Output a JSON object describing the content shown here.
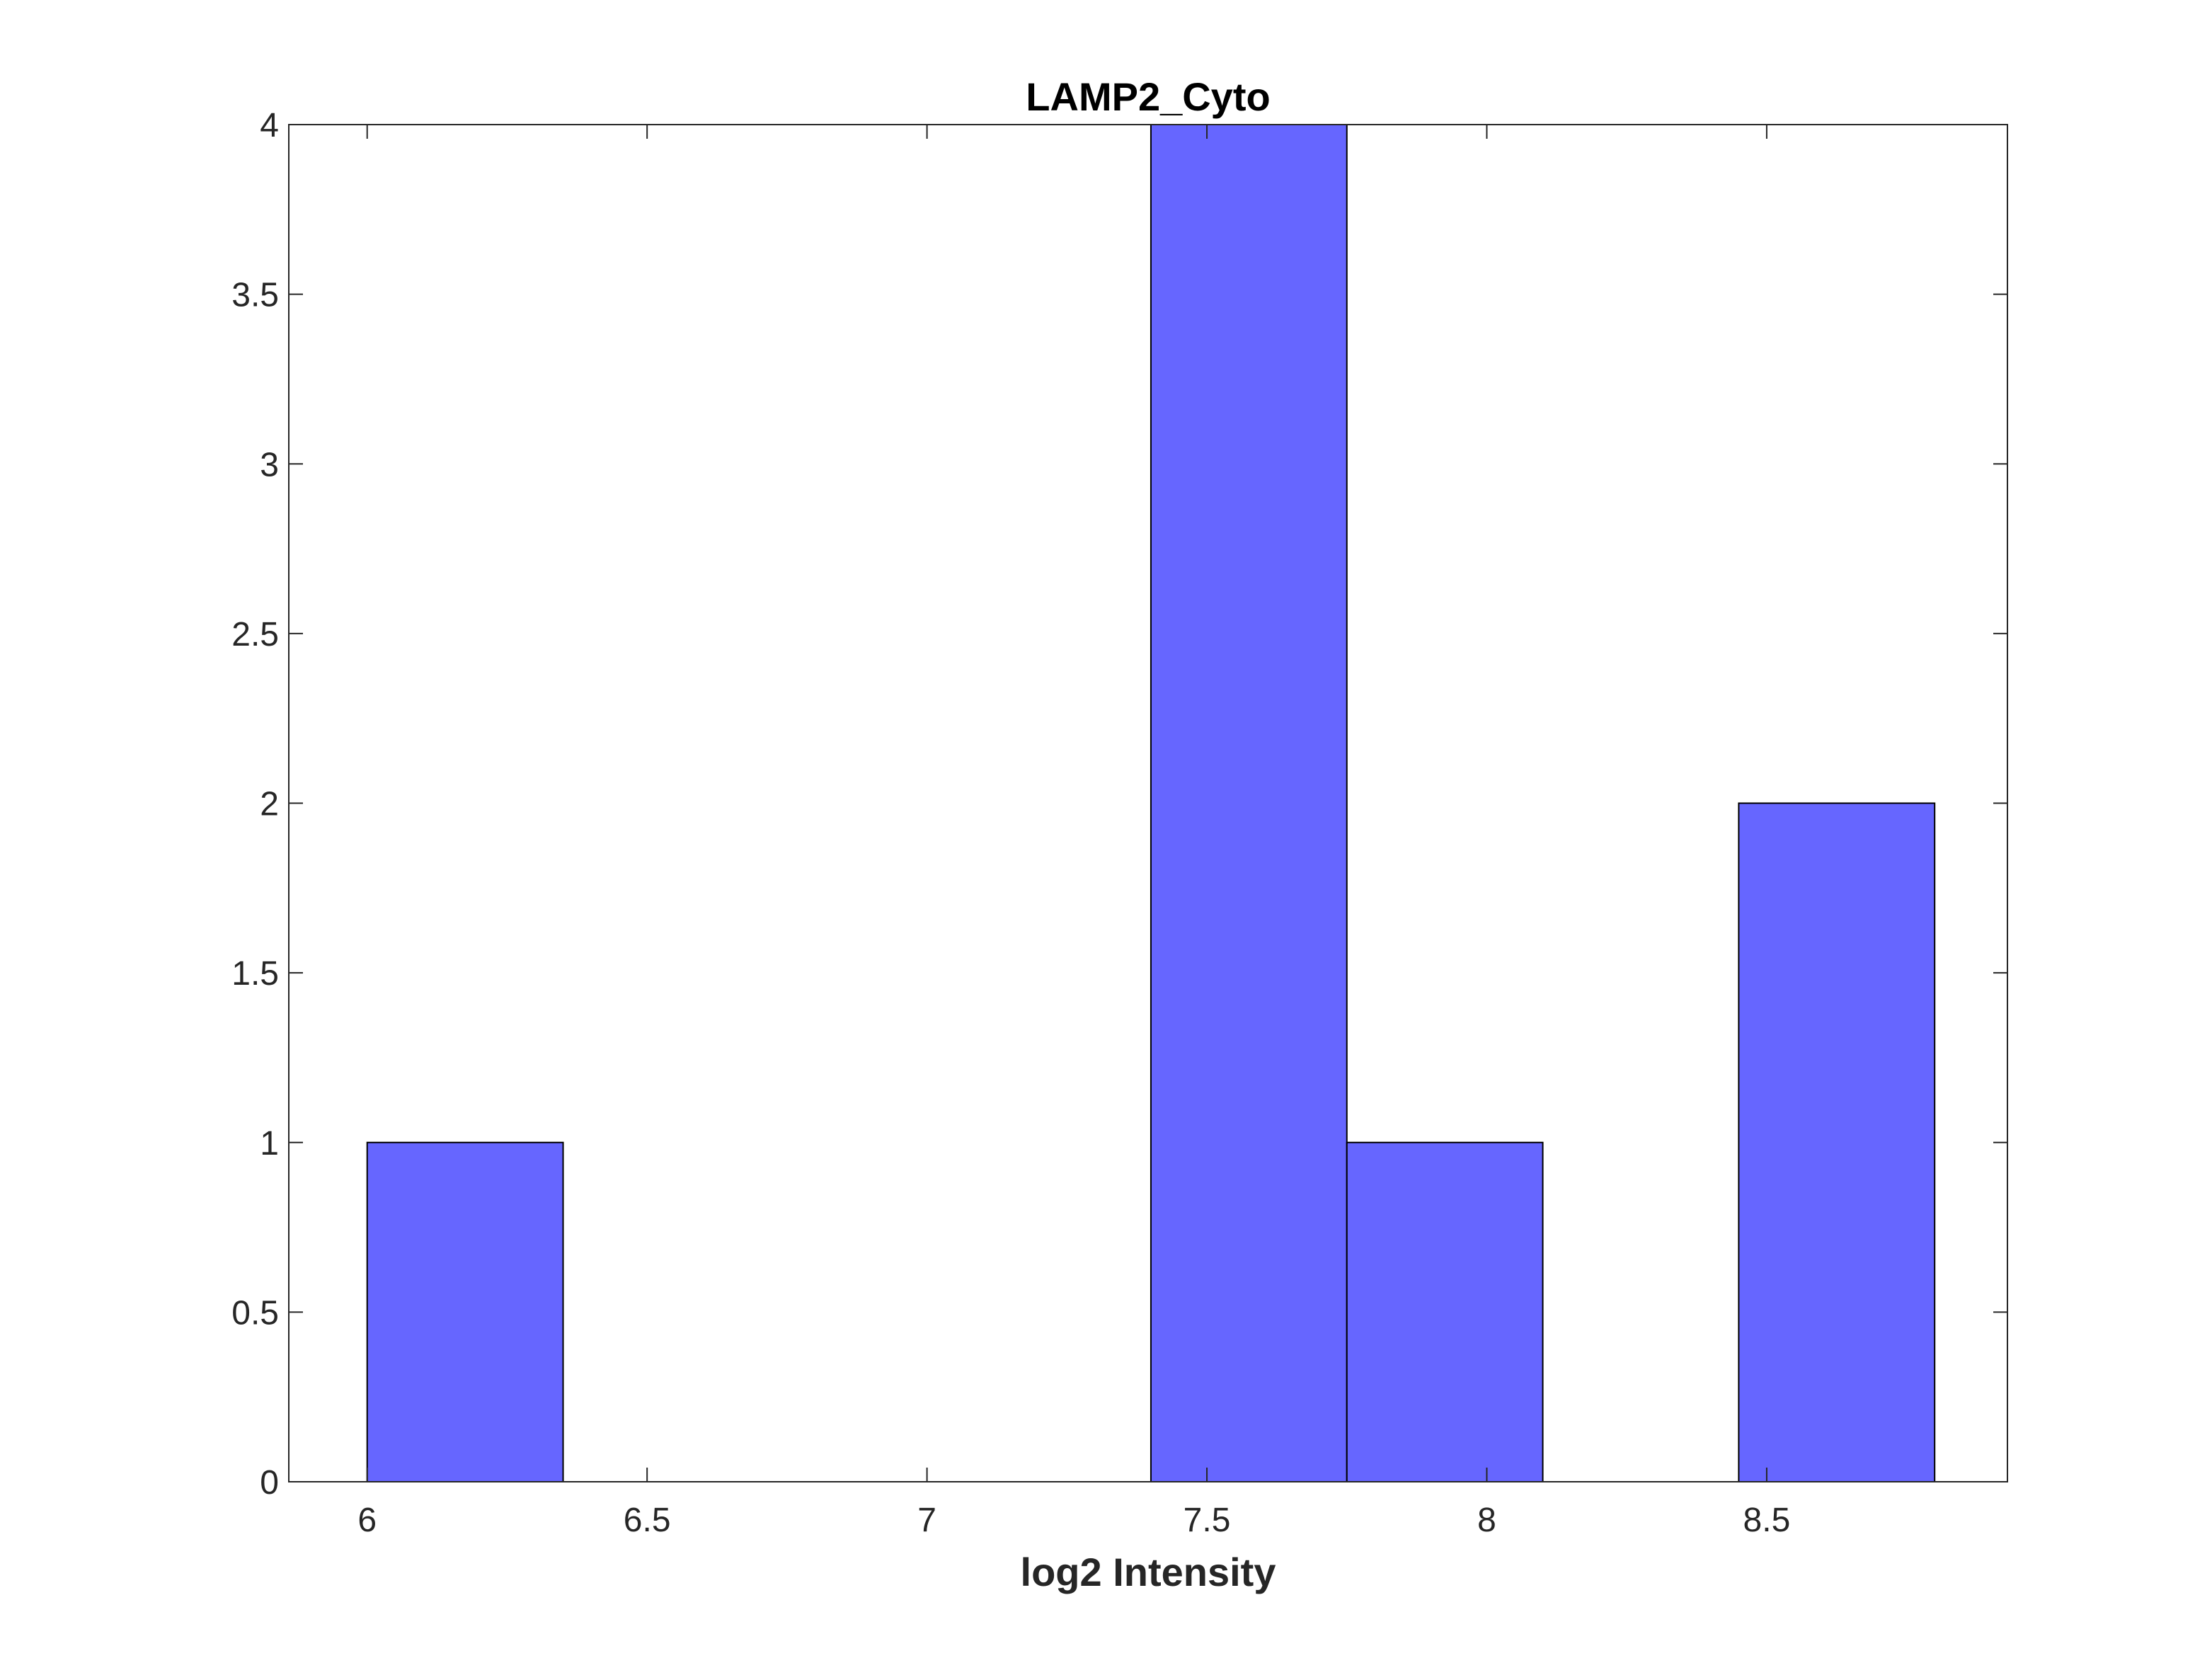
{
  "chart_data": {
    "type": "bar",
    "title": "LAMP2_Cyto",
    "xlabel": "log2 Intensity",
    "ylabel": "",
    "xlim": [
      5.86,
      8.93
    ],
    "ylim": [
      0,
      4
    ],
    "xticks": [
      6,
      6.5,
      7,
      7.5,
      8,
      8.5
    ],
    "xtick_labels": [
      "6",
      "6.5",
      "7",
      "7.5",
      "8",
      "8.5"
    ],
    "yticks": [
      0,
      0.5,
      1,
      1.5,
      2,
      2.5,
      3,
      3.5,
      4
    ],
    "ytick_labels": [
      "0",
      "0.5",
      "1",
      "1.5",
      "2",
      "2.5",
      "3",
      "3.5",
      "4"
    ],
    "bins": [
      {
        "x0": 6.0,
        "x1": 6.35,
        "count": 1
      },
      {
        "x0": 6.35,
        "x1": 6.7,
        "count": 0
      },
      {
        "x0": 6.7,
        "x1": 7.05,
        "count": 0
      },
      {
        "x0": 7.05,
        "x1": 7.4,
        "count": 0
      },
      {
        "x0": 7.4,
        "x1": 7.75,
        "count": 4
      },
      {
        "x0": 7.75,
        "x1": 8.1,
        "count": 1
      },
      {
        "x0": 8.1,
        "x1": 8.45,
        "count": 0
      },
      {
        "x0": 8.45,
        "x1": 8.8,
        "count": 2
      }
    ],
    "bar_color": "#6666ff",
    "edge_color": "#000000",
    "grid": false,
    "legend": false
  }
}
